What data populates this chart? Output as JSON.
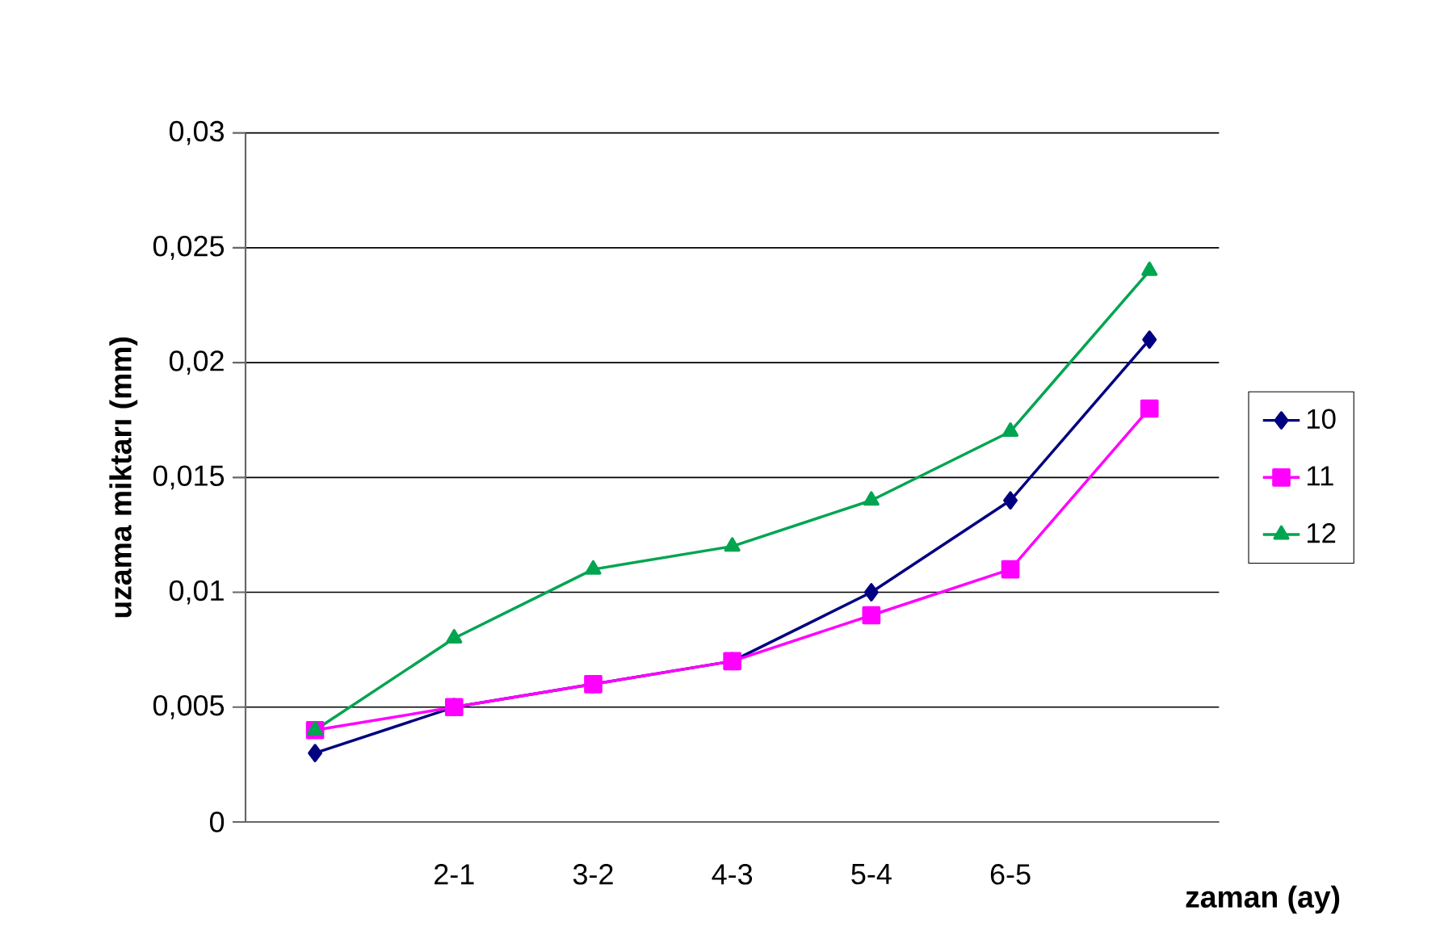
{
  "chart_data": {
    "type": "line",
    "xlabel": "zaman (ay)",
    "ylabel": "uzama miktarı (mm)",
    "categories": [
      null,
      "2-1",
      "3-2",
      "4-3",
      "5-4",
      "6-5",
      null
    ],
    "series": [
      {
        "name": "10",
        "color": "#000080",
        "marker": "diamond",
        "values": [
          0.003,
          0.005,
          0.006,
          0.007,
          0.01,
          0.014,
          0.021
        ]
      },
      {
        "name": "11",
        "color": "#ff00ff",
        "marker": "square",
        "values": [
          0.004,
          0.005,
          0.006,
          0.007,
          0.009,
          0.011,
          0.018
        ]
      },
      {
        "name": "12",
        "color": "#00a550",
        "marker": "triangle",
        "values": [
          0.004,
          0.008,
          0.011,
          0.012,
          0.014,
          0.017,
          0.024
        ]
      }
    ],
    "ylim": [
      0,
      0.03
    ],
    "yticks": [
      {
        "value": 0,
        "label": "0"
      },
      {
        "value": 0.005,
        "label": "0,005"
      },
      {
        "value": 0.01,
        "label": "0,01"
      },
      {
        "value": 0.015,
        "label": "0,015"
      },
      {
        "value": 0.02,
        "label": "0,02"
      },
      {
        "value": 0.025,
        "label": "0,025"
      },
      {
        "value": 0.03,
        "label": "0,03"
      }
    ],
    "grid": "y",
    "legend": "right",
    "line_style": "solid"
  }
}
